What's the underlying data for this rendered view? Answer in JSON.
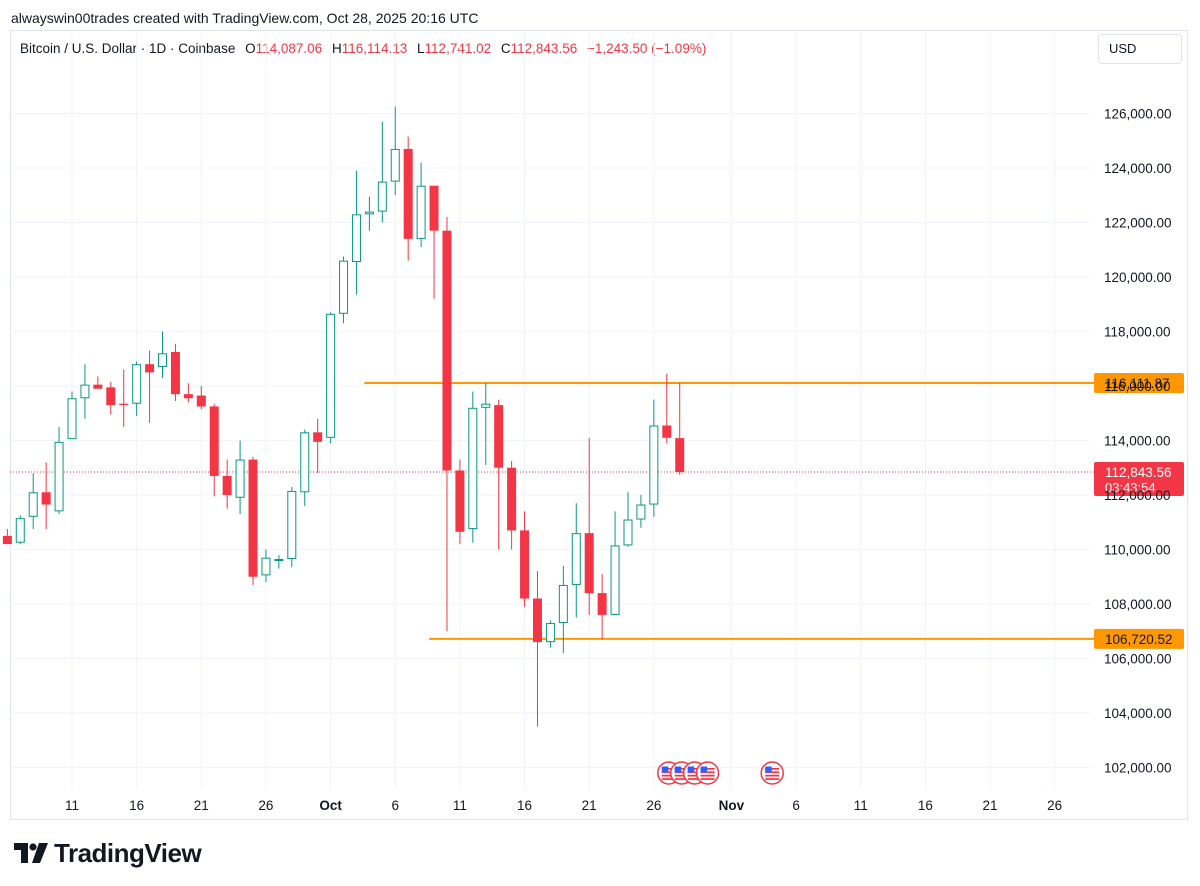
{
  "header": {
    "caption": "alwayswin00trades created with TradingView.com, Oct 28, 2025 20:16 UTC"
  },
  "legend": {
    "symbol": "Bitcoin / U.S. Dollar · 1D · Coinbase",
    "open_label": "O",
    "open": "114,087.06",
    "high_label": "H",
    "high": "116,114.13",
    "low_label": "L",
    "low": "112,741.02",
    "close_label": "C",
    "close": "112,843.56",
    "change": "−1,243.50 (−1.09%)"
  },
  "currency_button": "USD",
  "brand": {
    "name": "TradingView",
    "icon": "tradingview-logo-icon"
  },
  "colors": {
    "up": "#089981",
    "down": "#f23645",
    "level": "#ff9800",
    "grid": "#f0f3fa",
    "axis_text": "#131722"
  },
  "chart_data": {
    "type": "candlestick",
    "ylim": [
      101000,
      127000
    ],
    "y_ticks": [
      102000,
      104000,
      106000,
      108000,
      110000,
      112000,
      114000,
      116000,
      118000,
      120000,
      122000,
      124000,
      126000
    ],
    "y_tick_labels": [
      "102,000.00",
      "104,000.00",
      "106,000.00",
      "108,000.00",
      "110,000.00",
      "112,000.00",
      "114,000.00",
      "116,000.00",
      "118,000.00",
      "120,000.00",
      "122,000.00",
      "124,000.00",
      "126,000.00"
    ],
    "x_ticks": [
      {
        "date": "2025-09-11",
        "label": "11"
      },
      {
        "date": "2025-09-16",
        "label": "16"
      },
      {
        "date": "2025-09-21",
        "label": "21"
      },
      {
        "date": "2025-09-26",
        "label": "26"
      },
      {
        "date": "2025-10-01",
        "label": "Oct"
      },
      {
        "date": "2025-10-06",
        "label": "6"
      },
      {
        "date": "2025-10-11",
        "label": "11"
      },
      {
        "date": "2025-10-16",
        "label": "16"
      },
      {
        "date": "2025-10-21",
        "label": "21"
      },
      {
        "date": "2025-10-26",
        "label": "26"
      },
      {
        "date": "2025-11-01",
        "label": "Nov"
      },
      {
        "date": "2025-11-06",
        "label": "6"
      },
      {
        "date": "2025-11-11",
        "label": "11"
      },
      {
        "date": "2025-11-16",
        "label": "16"
      },
      {
        "date": "2025-11-21",
        "label": "21"
      },
      {
        "date": "2025-11-26",
        "label": "26"
      }
    ],
    "candles": [
      {
        "date": "2025-09-06",
        "o": 110500,
        "h": 110750,
        "l": 110250,
        "c": 110200
      },
      {
        "date": "2025-09-07",
        "o": 110250,
        "h": 111250,
        "l": 110200,
        "c": 111150
      },
      {
        "date": "2025-09-08",
        "o": 111200,
        "h": 112800,
        "l": 110750,
        "c": 112100
      },
      {
        "date": "2025-09-09",
        "o": 112100,
        "h": 113200,
        "l": 110750,
        "c": 111650
      },
      {
        "date": "2025-09-10",
        "o": 111400,
        "h": 114500,
        "l": 111300,
        "c": 113950
      },
      {
        "date": "2025-09-11",
        "o": 114050,
        "h": 115800,
        "l": 114050,
        "c": 115550
      },
      {
        "date": "2025-09-12",
        "o": 115550,
        "h": 116800,
        "l": 114800,
        "c": 116050
      },
      {
        "date": "2025-09-13",
        "o": 116050,
        "h": 116350,
        "l": 115950,
        "c": 115900
      },
      {
        "date": "2025-09-14",
        "o": 115950,
        "h": 116150,
        "l": 114950,
        "c": 115300
      },
      {
        "date": "2025-09-15",
        "o": 115350,
        "h": 116600,
        "l": 114500,
        "c": 115300
      },
      {
        "date": "2025-09-16",
        "o": 115350,
        "h": 116900,
        "l": 114900,
        "c": 116800
      },
      {
        "date": "2025-09-17",
        "o": 116800,
        "h": 117300,
        "l": 114650,
        "c": 116500
      },
      {
        "date": "2025-09-18",
        "o": 116700,
        "h": 118000,
        "l": 116300,
        "c": 117200
      },
      {
        "date": "2025-09-19",
        "o": 117250,
        "h": 117550,
        "l": 115450,
        "c": 115700
      },
      {
        "date": "2025-09-20",
        "o": 115700,
        "h": 116100,
        "l": 115400,
        "c": 115550
      },
      {
        "date": "2025-09-21",
        "o": 115650,
        "h": 116000,
        "l": 115150,
        "c": 115250
      },
      {
        "date": "2025-09-22",
        "o": 115250,
        "h": 115350,
        "l": 111950,
        "c": 112700
      },
      {
        "date": "2025-09-23",
        "o": 112700,
        "h": 113300,
        "l": 111500,
        "c": 112000
      },
      {
        "date": "2025-09-24",
        "o": 111900,
        "h": 114000,
        "l": 111300,
        "c": 113300
      },
      {
        "date": "2025-09-25",
        "o": 113300,
        "h": 113400,
        "l": 108700,
        "c": 109000
      },
      {
        "date": "2025-09-26",
        "o": 109050,
        "h": 110000,
        "l": 108800,
        "c": 109700
      },
      {
        "date": "2025-09-27",
        "o": 109600,
        "h": 109800,
        "l": 109300,
        "c": 109650
      },
      {
        "date": "2025-09-28",
        "o": 109650,
        "h": 112300,
        "l": 109350,
        "c": 112150
      },
      {
        "date": "2025-09-29",
        "o": 112100,
        "h": 114400,
        "l": 111600,
        "c": 114300
      },
      {
        "date": "2025-09-30",
        "o": 114300,
        "h": 114800,
        "l": 112800,
        "c": 113950
      },
      {
        "date": "2025-10-01",
        "o": 114100,
        "h": 118700,
        "l": 113900,
        "c": 118650
      },
      {
        "date": "2025-10-02",
        "o": 118650,
        "h": 120750,
        "l": 118300,
        "c": 120600
      },
      {
        "date": "2025-10-03",
        "o": 120550,
        "h": 123900,
        "l": 119350,
        "c": 122300
      },
      {
        "date": "2025-10-04",
        "o": 122300,
        "h": 122950,
        "l": 121700,
        "c": 122400
      },
      {
        "date": "2025-10-05",
        "o": 122400,
        "h": 125700,
        "l": 122000,
        "c": 123500
      },
      {
        "date": "2025-10-06",
        "o": 123500,
        "h": 126250,
        "l": 123000,
        "c": 124700
      },
      {
        "date": "2025-10-07",
        "o": 124700,
        "h": 125150,
        "l": 120600,
        "c": 121400
      },
      {
        "date": "2025-10-08",
        "o": 121400,
        "h": 124200,
        "l": 121100,
        "c": 123350
      },
      {
        "date": "2025-10-09",
        "o": 123350,
        "h": 123350,
        "l": 119200,
        "c": 121700
      },
      {
        "date": "2025-10-10",
        "o": 121700,
        "h": 122200,
        "l": 107000,
        "c": 112900
      },
      {
        "date": "2025-10-11",
        "o": 112900,
        "h": 113300,
        "l": 110200,
        "c": 110650
      },
      {
        "date": "2025-10-12",
        "o": 110750,
        "h": 115800,
        "l": 110250,
        "c": 115200
      },
      {
        "date": "2025-10-13",
        "o": 115200,
        "h": 116100,
        "l": 113100,
        "c": 115350
      },
      {
        "date": "2025-10-14",
        "o": 115300,
        "h": 115500,
        "l": 110000,
        "c": 113000
      },
      {
        "date": "2025-10-15",
        "o": 113000,
        "h": 113250,
        "l": 110000,
        "c": 110700
      },
      {
        "date": "2025-10-16",
        "o": 110700,
        "h": 111400,
        "l": 107900,
        "c": 108200
      },
      {
        "date": "2025-10-17",
        "o": 108200,
        "h": 109200,
        "l": 103500,
        "c": 106600
      },
      {
        "date": "2025-10-18",
        "o": 106600,
        "h": 107400,
        "l": 106400,
        "c": 107300
      },
      {
        "date": "2025-10-19",
        "o": 107300,
        "h": 109400,
        "l": 106200,
        "c": 108700
      },
      {
        "date": "2025-10-20",
        "o": 108700,
        "h": 111700,
        "l": 107500,
        "c": 110600
      },
      {
        "date": "2025-10-21",
        "o": 110600,
        "h": 114100,
        "l": 107600,
        "c": 108400
      },
      {
        "date": "2025-10-22",
        "o": 108400,
        "h": 109100,
        "l": 106700,
        "c": 107600
      },
      {
        "date": "2025-10-23",
        "o": 107600,
        "h": 111400,
        "l": 107600,
        "c": 110150
      },
      {
        "date": "2025-10-24",
        "o": 110150,
        "h": 112100,
        "l": 110100,
        "c": 111100
      },
      {
        "date": "2025-10-25",
        "o": 111100,
        "h": 112000,
        "l": 110800,
        "c": 111650
      },
      {
        "date": "2025-10-26",
        "o": 111650,
        "h": 115500,
        "l": 111200,
        "c": 114550
      },
      {
        "date": "2025-10-27",
        "o": 114550,
        "h": 116450,
        "l": 113900,
        "c": 114100
      },
      {
        "date": "2025-10-28",
        "o": 114087.06,
        "h": 116114.13,
        "l": 112741.02,
        "c": 112843.56
      }
    ],
    "levels": [
      {
        "value": 116111.87,
        "label": "116,111.87",
        "from_date": "2025-10-04"
      },
      {
        "value": 106720.52,
        "label": "106,720.52",
        "from_date": "2025-10-09"
      }
    ],
    "last_price": {
      "value": 112843.56,
      "label": "112,843.56",
      "countdown": "03:43:54"
    },
    "event_dates": [
      "2025-10-27",
      "2025-10-28",
      "2025-10-29",
      "2025-10-30",
      "2025-11-04"
    ]
  }
}
